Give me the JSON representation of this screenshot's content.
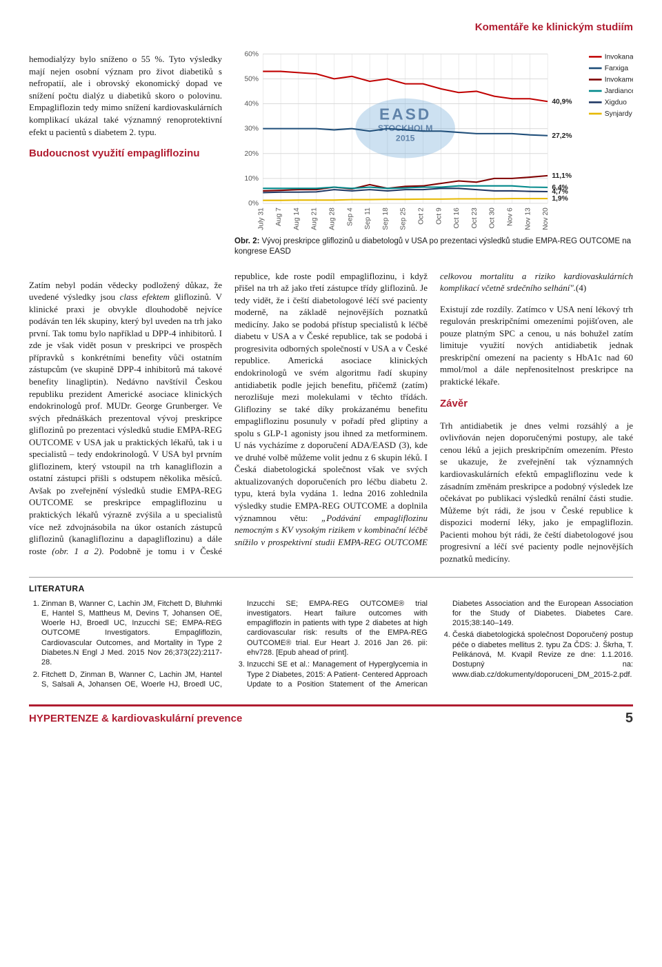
{
  "header": {
    "section_title": "Komentáře ke klinickým studiím"
  },
  "left_intro": "hemodialýzy bylo sníženo o 55 %. Tyto výsledky mají nejen osobní význam pro život diabetiků s nefropatií, ale i obrovský ekonomický dopad ve snížení počtu dialýz u diabetiků skoro o polovinu. Empagliflozin tedy mimo snížení kardiovaskulárních komplikací ukázal také významný renoprotektivní efekt u pacientů s diabetem 2. typu.",
  "subhead1": "Budoucnost využití empagliflozinu",
  "left_para2a": "Zatím nebyl podán vědecky podložený důkaz, že uvedené výsledky jsou ",
  "left_para2_italic": "class efektem",
  "left_para2b": " gliflozinů. V klinické praxi je obvykle dlouhodobě nejvíce podáván ten lék skupiny, který byl uveden na trh jako první. Tak tomu bylo například u DPP-4 inhibitorů. I zde je však vidět posun v preskripci ve prospěch přípravků s konkrétními benefity vůči ostatním zástupcům (ve skupině DPP-4 inhibitorů má takové benefity linagliptin). Nedávno navštívil Českou republiku prezident Americké asociace klinických endokrinologů prof. MUDr. George Grunberger. Ve svých přednáškách prezentoval vývoj preskripce gliflozinů po prezentaci výsledků studie EMPA-REG OUTCOME v USA jak u praktických lékařů, tak i u specialistů – tedy endokrinologů. V USA byl prvním gliflozinem, který vstoupil na trh kanagliflozin a ostatní zástupci přišli s odstupem několika měsíců. Avšak po zveřejnění výsledků studie EMPA-REG OUTCOME se preskripce empagliflozinu u praktických lékařů výrazně zvýšila a u specialistů více než zdvojnásobila na úkor ostaních zástupců gliflozinů (kanagliflozinu a dapagliflozinu) a dále roste ",
  "left_para2_fig": "(obr. 1 a 2)",
  "left_para2c": ". Podobně je tomu i v České republice, kde roste podíl empagliflozinu, i když přišel na trh až jako třetí zástupce třídy gliflozinů. Je tedy vidět, že i čeští diabetologové léčí své pacienty moderně, na základě ",
  "col2_para": "nejnovějších poznatků medicíny. Jako se podobá přístup specialistů k léčbě diabetu v USA a v České republice, tak se podobá i progresivita odborných společností v USA a v České republice. Americká asociace klinických endokrinologů ve svém algoritmu řadí skupiny antidiabetik podle jejich benefitu, přičemž (zatím) nerozlišuje mezi molekulami v těchto třídách. Glifloziny se také díky prokázanému benefitu empagliflozinu posunuly v pořadí před gliptiny a spolu s GLP-1 agonisty jsou ihned za metforminem. U nás vycházíme z doporučení ADA/EASD (3), kde ve druhé volbě můžeme volit jednu z 6 skupin léků. I Česká diabetologická společnost však ve svých aktualizovaných doporučeních pro léčbu diabetu 2. typu, která byla vydána 1. ledna 2016 zohlednila výsledky studie EMPA-REG OUTCOME a doplnila významnou větu: ",
  "col2_quote": "„Podávání empagliflozinu nemocným s KV vysokým rizikem v kombinační léčbě snížilo v prospektivní studii EMPA-REG OUTCOME celkovou mortalitu a riziko kardiovaskulárních komplikací včetně srdečního selhání\".",
  "col2_tail": "(4)",
  "col3_para1": "Existují zde rozdíly. Zatímco v USA není lékový trh regulován preskripčními omezeními pojišťoven, ale pouze platným SPC a cenou, u nás bohužel zatím limituje využití nových antidiabetik jednak preskripční omezení na pacienty s HbA1c nad 60 mmol/mol a dále nepřenositelnost preskripce na praktické lékaře.",
  "subhead2": "Závěr",
  "col3_para2": "Trh antidiabetik je dnes velmi rozsáhlý a je ovlivňován nejen doporučenými postupy, ale také cenou léků a jejich preskripčním omezením. Přesto se ukazuje, že zveřejnění tak významných kardiovaskulárních efektů empagliflozinu vede k zásadním změnám preskripce a podobný výsledek lze očekávat po publikaci výsledků renální části studie. Můžeme být rádi, že jsou v České republice k dispozici moderní léky, jako je empagliflozin. Pacienti mohou být rádi, že čeští diabetologové jsou progresivní a léčí své pacienty podle nejnovějších poznatků medicíny.",
  "chart": {
    "type": "line",
    "background_color": "#ffffff",
    "grid_color": "#d9d9d9",
    "title_fontsize": 12,
    "y_ticks": [
      "0%",
      "10%",
      "20%",
      "30%",
      "40%",
      "50%",
      "60%"
    ],
    "x_ticks": [
      "July 31",
      "Aug 7",
      "Aug 14",
      "Aug 21",
      "Aug 28",
      "Sep 4",
      "Sep 11",
      "Sep 18",
      "Sep 25",
      "Oct 2",
      "Oct 9",
      "Oct 16",
      "Oct 23",
      "Oct 30",
      "Nov 6",
      "Nov 13",
      "Nov 20"
    ],
    "ylim": [
      0,
      60
    ],
    "series": [
      {
        "name": "Invokana",
        "color": "#c00000",
        "values": [
          53,
          53,
          52.5,
          52,
          50,
          51,
          49,
          50,
          48,
          48,
          46,
          44.5,
          45,
          43,
          42,
          42,
          40.9
        ],
        "end_label": "40,9%"
      },
      {
        "name": "Farxiga",
        "color": "#1f4e79",
        "values": [
          30,
          30,
          30,
          30,
          29.5,
          30,
          29,
          30,
          29.5,
          29,
          29,
          28.5,
          28,
          28,
          28,
          27.5,
          27.2
        ],
        "end_label": "27,2%"
      },
      {
        "name": "Invokamet",
        "color": "#7f0000",
        "values": [
          5,
          5.2,
          5.5,
          5.5,
          6.5,
          5.8,
          7.5,
          6,
          6.8,
          7,
          8,
          9,
          8.5,
          10,
          10,
          10.5,
          11.1
        ],
        "end_label": "11,1%"
      },
      {
        "name": "Jardiance",
        "color": "#00888a",
        "values": [
          6,
          6,
          6,
          6,
          6.5,
          6,
          6.5,
          6,
          6.2,
          6.5,
          6.5,
          7,
          7,
          7,
          7,
          6.5,
          6.4
        ],
        "end_label": "6,4%"
      },
      {
        "name": "Xigduo",
        "color": "#203864",
        "values": [
          4.3,
          4.5,
          4.5,
          4.6,
          5.5,
          5,
          5.5,
          5,
          5.5,
          5.5,
          6,
          6,
          5.5,
          5,
          5,
          4.8,
          4.7
        ],
        "end_label": "4,7%"
      },
      {
        "name": "Synjardy",
        "color": "#e6b800",
        "values": [
          1.2,
          1.2,
          1.3,
          1.3,
          1.3,
          1.5,
          1.5,
          1.6,
          1.6,
          1.7,
          1.7,
          1.8,
          1.8,
          1.8,
          1.9,
          1.9,
          1.9
        ],
        "end_label": "1,9%"
      }
    ],
    "watermark": {
      "line1": "EASD",
      "line2": "STOCKHOLM",
      "line3": "2015"
    },
    "caption_bold": "Obr. 2:",
    "caption_rest": " Vývoj preskripce gliflozinů u diabetologů v USA po prezentaci výsledků studie EMPA-REG OUTCOME na kongrese EASD"
  },
  "literatura": {
    "heading": "LITERATURA",
    "items": [
      "Zinman B, Wanner C, Lachin JM, Fitchett D, Bluhmki E, Hantel S, Mattheus M, Devins T, Johansen OE, Woerle HJ, Broedl UC, Inzucchi SE; EMPA-REG OUTCOME Investigators. Empagliflozin, Cardiovascular Outcomes, and Mortality in Type 2 Diabetes.N Engl J Med. 2015 Nov 26;373(22):2117-28.",
      "Fitchett D, Zinman B, Wanner C, Lachin JM, Hantel S, Salsali A, Johansen OE, Woerle HJ, Broedl UC, Inzucchi SE; EMPA-REG OUTCOME® trial investigators. Heart failure outcomes with empagliflozin in patients with type 2 diabetes at high cardiovascular risk: results of the EMPA-REG OUTCOME® trial. Eur Heart J. 2016 Jan 26. pii: ehv728. [Epub ahead of print].",
      "Inzucchi SE et al.: Management of Hyperglycemia in Type 2 Diabetes, 2015: A Patient- Centered Approach Update to a Position Statement of the American Diabetes Association and the European Association for the Study of Diabetes. Diabetes Care. 2015;38:140–149.",
      "Česká diabetologická společnost Doporučený postup péče o diabetes mellitus 2. typu Za ČDS: J. Škrha, T. Pelikánová, M. Kvapil Revize ze dne: 1.1.2016. Dostupný na: www.diab.cz/dokumenty/doporuceni_DM_2015-2.pdf."
    ]
  },
  "footer": {
    "journal": "HYPERTENZE & kardiovaskulární prevence",
    "page": "5"
  }
}
